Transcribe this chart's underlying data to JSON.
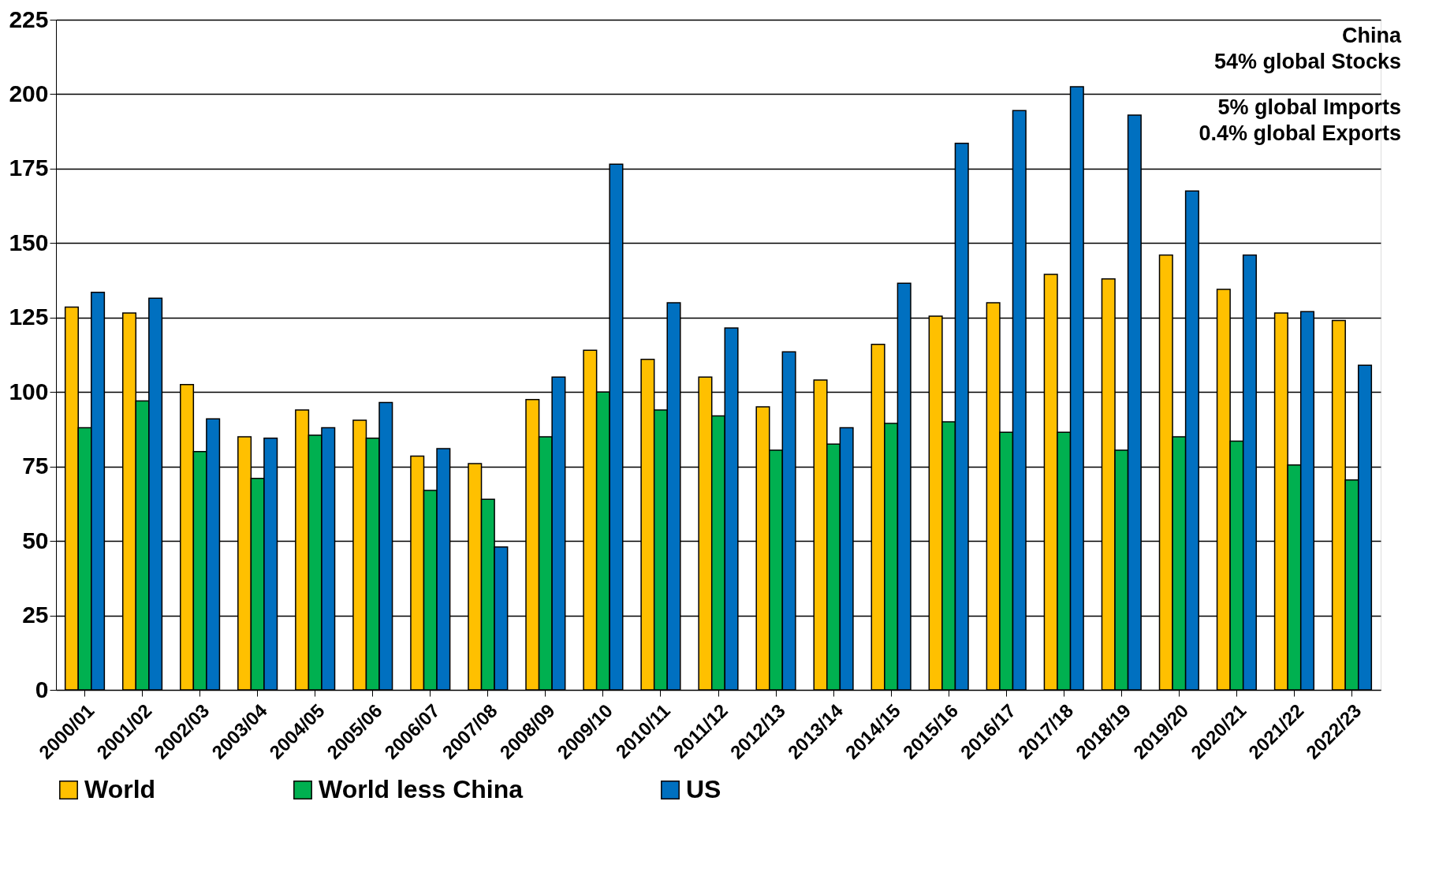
{
  "chart_data": {
    "type": "bar",
    "categories": [
      "2000/01",
      "2001/02",
      "2002/03",
      "2003/04",
      "2004/05",
      "2005/06",
      "2006/07",
      "2007/08",
      "2008/09",
      "2009/10",
      "2010/11",
      "2011/12",
      "2012/13",
      "2013/14",
      "2014/15",
      "2015/16",
      "2016/17",
      "2017/18",
      "2018/19",
      "2019/20",
      "2020/21",
      "2021/22",
      "2022/23"
    ],
    "series": [
      {
        "name": "World",
        "color": "#ffc000",
        "values": [
          128.5,
          126.5,
          102.5,
          85,
          94,
          90.5,
          78.5,
          76,
          97.5,
          114,
          111,
          105,
          95,
          104,
          116,
          125.5,
          130,
          139.5,
          138,
          146,
          134.5,
          126.5,
          124
        ]
      },
      {
        "name": "World less China",
        "color": "#00b050",
        "values": [
          88,
          97,
          80,
          71,
          85.5,
          84.5,
          67,
          64,
          85,
          100,
          94,
          92,
          80.5,
          82.5,
          89.5,
          90,
          86.5,
          86.5,
          80.5,
          85,
          83.5,
          75.5,
          70.5
        ]
      },
      {
        "name": "US",
        "color": "#0070c0",
        "values": [
          133.5,
          131.5,
          91,
          84.5,
          88,
          96.5,
          81,
          48,
          105,
          176.5,
          130,
          121.5,
          113.5,
          88,
          136.5,
          183.5,
          194.5,
          202.5,
          193,
          167.5,
          146,
          127,
          109
        ]
      }
    ],
    "ylim": [
      0,
      225
    ],
    "yticks": [
      0,
      25,
      50,
      75,
      100,
      125,
      150,
      175,
      200,
      225
    ],
    "grid": "y",
    "legend": "bottom",
    "annotations": [
      "China",
      "54% global Stocks",
      "5% global Imports",
      "0.4% global Exports"
    ]
  }
}
